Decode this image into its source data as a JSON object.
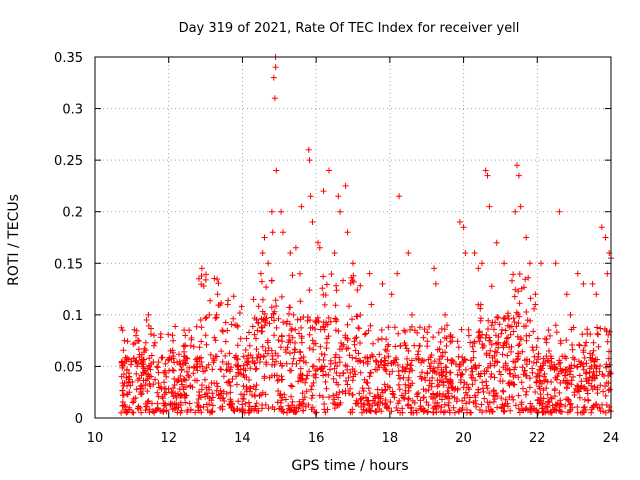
{
  "chart_data": {
    "type": "scatter",
    "title": "Day 319 of 2021, Rate Of TEC Index for receiver yell",
    "xlabel": "GPS time / hours",
    "ylabel": "ROTI / TECUs",
    "xlim": [
      10,
      24
    ],
    "ylim": [
      0,
      0.35
    ],
    "xticks": [
      "10",
      "12",
      "14",
      "16",
      "18",
      "20",
      "22",
      "24"
    ],
    "yticks": [
      "0",
      "0.05",
      "0.1",
      "0.15",
      "0.2",
      "0.25",
      "0.3",
      "0.35"
    ],
    "grid": true,
    "marker": "plus",
    "color": "#ff0000",
    "series": [
      {
        "name": "ROTI",
        "x": [
          10.75,
          10.8,
          10.85,
          11.4,
          11.45,
          11.6,
          12.05,
          12.45,
          12.6,
          12.9,
          12.95,
          13.1,
          13.3,
          13.45,
          13.6,
          13.8,
          13.85,
          14.2,
          14.3,
          14.5,
          14.55,
          14.6,
          14.7,
          14.8,
          14.82,
          14.85,
          14.88,
          14.9,
          14.9,
          14.92,
          15.05,
          15.1,
          15.3,
          15.45,
          15.6,
          15.8,
          15.82,
          15.85,
          15.9,
          16.05,
          16.1,
          16.2,
          16.35,
          16.5,
          16.6,
          16.65,
          16.8,
          16.85,
          17.0,
          17.45,
          17.5,
          17.8,
          18.05,
          18.2,
          18.25,
          18.5,
          18.6,
          18.8,
          19.2,
          19.25,
          19.5,
          19.55,
          19.9,
          20.0,
          20.05,
          20.3,
          20.4,
          20.5,
          20.6,
          20.65,
          20.7,
          20.9,
          21.1,
          21.4,
          21.45,
          21.5,
          21.55,
          21.7,
          21.8,
          21.95,
          22.1,
          22.5,
          22.6,
          22.8,
          22.9,
          23.1,
          23.25,
          23.5,
          23.6,
          23.75,
          23.85,
          23.9,
          23.95,
          24.0
        ],
        "y": [
          0.085,
          0.075,
          0.055,
          0.095,
          0.1,
          0.07,
          0.065,
          0.08,
          0.07,
          0.145,
          0.128,
          0.1,
          0.1,
          0.085,
          0.11,
          0.09,
          0.09,
          0.07,
          0.115,
          0.14,
          0.16,
          0.175,
          0.15,
          0.2,
          0.18,
          0.33,
          0.31,
          0.35,
          0.34,
          0.24,
          0.2,
          0.18,
          0.16,
          0.165,
          0.205,
          0.26,
          0.25,
          0.215,
          0.19,
          0.17,
          0.165,
          0.22,
          0.24,
          0.16,
          0.215,
          0.2,
          0.225,
          0.18,
          0.15,
          0.14,
          0.11,
          0.13,
          0.12,
          0.14,
          0.215,
          0.16,
          0.1,
          0.07,
          0.145,
          0.13,
          0.1,
          0.09,
          0.19,
          0.185,
          0.16,
          0.16,
          0.145,
          0.15,
          0.24,
          0.235,
          0.205,
          0.17,
          0.15,
          0.2,
          0.245,
          0.235,
          0.205,
          0.175,
          0.15,
          0.12,
          0.15,
          0.15,
          0.2,
          0.12,
          0.1,
          0.14,
          0.13,
          0.13,
          0.12,
          0.185,
          0.175,
          0.14,
          0.16,
          0.155
        ]
      }
    ],
    "baseline": {
      "note": "dense cloud of low values between 0.005 and 0.06 from hour 10.7 to 24",
      "x_start": 10.7,
      "x_end": 24.0,
      "y_min": 0.005,
      "y_max": 0.06
    }
  }
}
